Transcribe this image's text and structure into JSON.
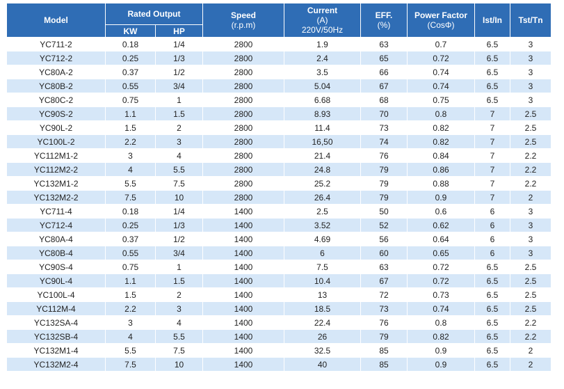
{
  "headers": {
    "model": "Model",
    "rated_output": "Rated Output",
    "kw": "KW",
    "hp": "HP",
    "speed": "Speed",
    "speed_unit": "(r.p.m)",
    "current": "Current",
    "current_unit": "(A)",
    "current_cond": "220V/50Hz",
    "eff": "EFF.",
    "eff_unit": "(%)",
    "pf": "Power Factor",
    "pf_unit": "(CosΦ)",
    "ist": "Ist/In",
    "tst": "Tst/Tn"
  },
  "rows": [
    [
      "YC711-2",
      "0.18",
      "1/4",
      "2800",
      "1.9",
      "63",
      "0.7",
      "6.5",
      "3"
    ],
    [
      "YC712-2",
      "0.25",
      "1/3",
      "2800",
      "2.4",
      "65",
      "0.72",
      "6.5",
      "3"
    ],
    [
      "YC80A-2",
      "0.37",
      "1/2",
      "2800",
      "3.5",
      "66",
      "0.74",
      "6.5",
      "3"
    ],
    [
      "YC80B-2",
      "0.55",
      "3/4",
      "2800",
      "5.04",
      "67",
      "0.74",
      "6.5",
      "3"
    ],
    [
      "YC80C-2",
      "0.75",
      "1",
      "2800",
      "6.68",
      "68",
      "0.75",
      "6.5",
      "3"
    ],
    [
      "YC90S-2",
      "1.1",
      "1.5",
      "2800",
      "8.93",
      "70",
      "0.8",
      "7",
      "2.5"
    ],
    [
      "YC90L-2",
      "1.5",
      "2",
      "2800",
      "11.4",
      "73",
      "0.82",
      "7",
      "2.5"
    ],
    [
      "YC100L-2",
      "2.2",
      "3",
      "2800",
      "16,50",
      "74",
      "0.82",
      "7",
      "2.5"
    ],
    [
      "YC112M1-2",
      "3",
      "4",
      "2800",
      "21.4",
      "76",
      "0.84",
      "7",
      "2.2"
    ],
    [
      "YC112M2-2",
      "4",
      "5.5",
      "2800",
      "24.8",
      "79",
      "0.86",
      "7",
      "2.2"
    ],
    [
      "YC132M1-2",
      "5.5",
      "7.5",
      "2800",
      "25.2",
      "79",
      "0.88",
      "7",
      "2.2"
    ],
    [
      "YC132M2-2",
      "7.5",
      "10",
      "2800",
      "26.4",
      "79",
      "0.9",
      "7",
      "2"
    ],
    [
      "YC711-4",
      "0.18",
      "1/4",
      "1400",
      "2.5",
      "50",
      "0.6",
      "6",
      "3"
    ],
    [
      "YC712-4",
      "0.25",
      "1/3",
      "1400",
      "3.52",
      "52",
      "0.62",
      "6",
      "3"
    ],
    [
      "YC80A-4",
      "0.37",
      "1/2",
      "1400",
      "4.69",
      "56",
      "0.64",
      "6",
      "3"
    ],
    [
      "YC80B-4",
      "0.55",
      "3/4",
      "1400",
      "6",
      "60",
      "0.65",
      "6",
      "3"
    ],
    [
      "YC90S-4",
      "0.75",
      "1",
      "1400",
      "7.5",
      "63",
      "0.72",
      "6.5",
      "2.5"
    ],
    [
      "YC90L-4",
      "1.1",
      "1.5",
      "1400",
      "10.4",
      "67",
      "0.72",
      "6.5",
      "2.5"
    ],
    [
      "YC100L-4",
      "1.5",
      "2",
      "1400",
      "13",
      "72",
      "0.73",
      "6.5",
      "2.5"
    ],
    [
      "YC112M-4",
      "2.2",
      "3",
      "1400",
      "18.5",
      "73",
      "0.74",
      "6.5",
      "2.5"
    ],
    [
      "YC132SA-4",
      "3",
      "4",
      "1400",
      "22.4",
      "76",
      "0.8",
      "6.5",
      "2.2"
    ],
    [
      "YC132SB-4",
      "4",
      "5.5",
      "1400",
      "26",
      "79",
      "0.82",
      "6.5",
      "2.2"
    ],
    [
      "YC132M1-4",
      "5.5",
      "7.5",
      "1400",
      "32.5",
      "85",
      "0.9",
      "6.5",
      "2"
    ],
    [
      "YC132M2-4",
      "7.5",
      "10",
      "1400",
      "40",
      "85",
      "0.9",
      "6.5",
      "2"
    ]
  ]
}
